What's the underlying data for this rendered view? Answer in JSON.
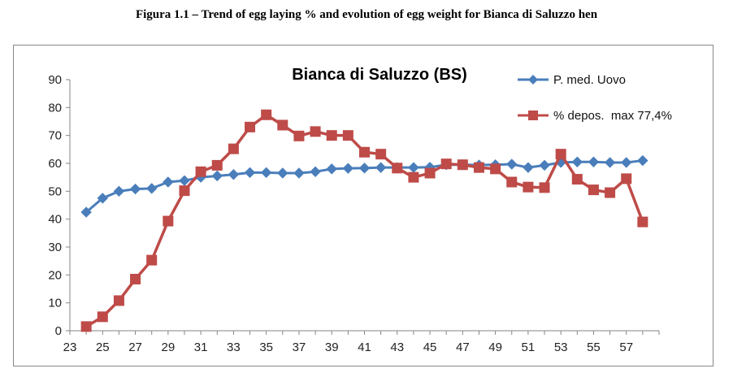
{
  "caption": "Figura 1.1 – Trend of egg laying % and evolution of egg weight for Bianca di Saluzzo hen",
  "chart_data": {
    "type": "line",
    "title": "Bianca di Saluzzo (BS)",
    "xlabel": "",
    "ylabel": "",
    "xlim": [
      23,
      59
    ],
    "ylim": [
      0,
      90
    ],
    "x_ticks": [
      23,
      25,
      27,
      29,
      31,
      33,
      35,
      37,
      39,
      41,
      43,
      45,
      47,
      49,
      51,
      53,
      55,
      57
    ],
    "y_ticks": [
      0,
      10,
      20,
      30,
      40,
      50,
      60,
      70,
      80,
      90
    ],
    "grid": false,
    "legend_position": "top-right",
    "x": [
      24,
      25,
      26,
      27,
      28,
      29,
      30,
      31,
      32,
      33,
      34,
      35,
      36,
      37,
      38,
      39,
      40,
      41,
      42,
      43,
      44,
      45,
      46,
      47,
      48,
      49,
      50,
      51,
      52,
      53,
      54,
      55,
      56,
      57,
      58
    ],
    "series": [
      {
        "name": "P. med. Uovo",
        "color": "#4a7ebb",
        "marker": "diamond",
        "values": [
          42.5,
          47.5,
          50,
          50.8,
          51,
          53.3,
          53.8,
          55,
          55.5,
          56,
          56.7,
          56.7,
          56.5,
          56.5,
          57,
          58,
          58.2,
          58.3,
          58.5,
          58.5,
          58.5,
          58.6,
          59.5,
          59.5,
          59.4,
          59.5,
          59.7,
          58.5,
          59.3,
          60.3,
          60.5,
          60.5,
          60.3,
          60.3,
          61
        ]
      },
      {
        "name": "% depos.  max 77,4%",
        "color": "#be4b48",
        "marker": "square",
        "values": [
          1.5,
          5,
          10.8,
          18.5,
          25.3,
          39.3,
          50.2,
          57,
          59.3,
          65.2,
          73,
          77.4,
          73.7,
          69.8,
          71.4,
          70,
          70,
          64,
          63.3,
          58.3,
          55,
          56.5,
          59.8,
          59.5,
          58.5,
          58,
          53.3,
          51.5,
          51.3,
          63.3,
          54.3,
          50.5,
          49.5,
          54.5,
          39
        ]
      }
    ]
  }
}
